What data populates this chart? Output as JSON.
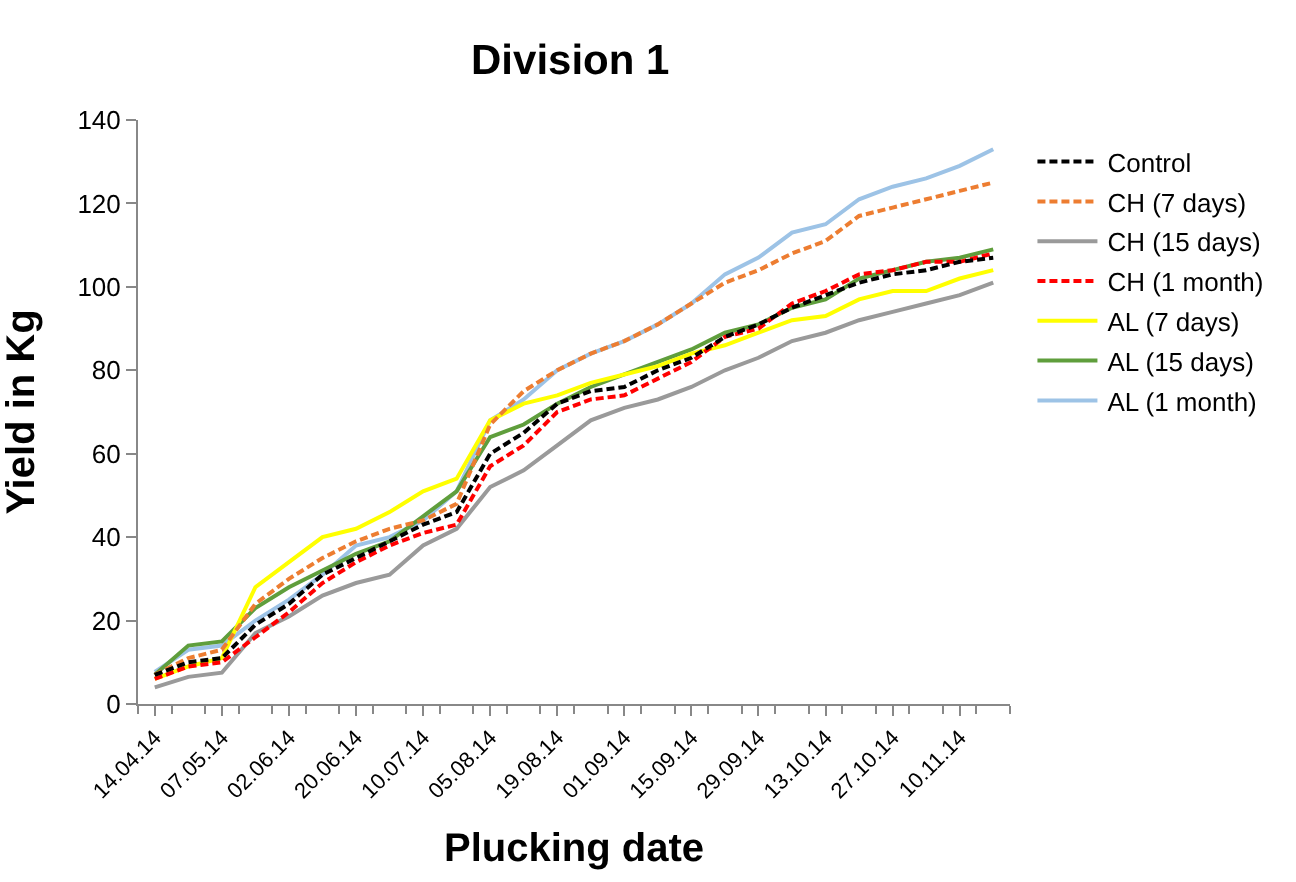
{
  "chart_data": {
    "type": "line",
    "title": "Division 1",
    "xlabel": "Plucking date",
    "ylabel": "Yield in Kg",
    "categories": [
      "14.04.14",
      null,
      "07.05.14",
      null,
      "02.06.14",
      null,
      "20.06.14",
      null,
      "10.07.14",
      null,
      "05.08.14",
      null,
      "19.08.14",
      null,
      "01.09.14",
      null,
      "15.09.14",
      null,
      "29.09.14",
      null,
      "13.10.14",
      null,
      "27.10.14",
      null,
      "10.11.14",
      null
    ],
    "ylim": [
      0,
      140
    ],
    "yticks": [
      0,
      20,
      40,
      60,
      80,
      100,
      120,
      140
    ],
    "legend": "right",
    "marker": "none",
    "series": [
      {
        "name": "Control",
        "color": "#000000",
        "line_style": "dashed",
        "values": [
          7,
          10,
          11,
          19,
          24,
          31,
          35,
          39,
          43,
          46,
          60,
          65,
          72,
          75,
          76,
          80,
          83,
          88,
          91,
          95,
          98,
          101,
          103,
          104,
          106,
          107
        ]
      },
      {
        "name": "CH (7 days)",
        "color": "#ed7d31",
        "line_style": "dashed",
        "values": [
          7,
          11,
          13,
          24,
          30,
          35,
          39,
          42,
          44,
          48,
          67,
          75,
          80,
          84,
          87,
          91,
          96,
          101,
          104,
          108,
          111,
          117,
          119,
          121,
          123,
          125
        ]
      },
      {
        "name": "CH (15 days)",
        "color": "#9a9a9a",
        "line_style": "solid",
        "values": [
          4,
          6.5,
          7.5,
          17,
          21,
          26,
          29,
          31,
          38,
          42,
          52,
          56,
          62,
          68,
          71,
          73,
          76,
          80,
          83,
          87,
          89,
          92,
          94,
          96,
          98,
          101
        ]
      },
      {
        "name": "CH (1 month)",
        "color": "#ff0000",
        "line_style": "dashed",
        "values": [
          6,
          9,
          10,
          16,
          22,
          29,
          34,
          38,
          41,
          43,
          57,
          62,
          70,
          73,
          74,
          78,
          82,
          88,
          90,
          96,
          99,
          103,
          104,
          106,
          106,
          108
        ]
      },
      {
        "name": "AL (7 days)",
        "color": "#ffff00",
        "line_style": "solid",
        "values": [
          6,
          9,
          11,
          28,
          34,
          40,
          42,
          46,
          51,
          54,
          68,
          72,
          74,
          77,
          79,
          81,
          84,
          86,
          89,
          92,
          93,
          97,
          99,
          99,
          102,
          104
        ]
      },
      {
        "name": "AL (15 days)",
        "color": "#5f9e3c",
        "line_style": "solid",
        "values": [
          7,
          14,
          15,
          23,
          28,
          32,
          36,
          39,
          45,
          51,
          64,
          67,
          72,
          76,
          79,
          82,
          85,
          89,
          91,
          95,
          97,
          102,
          104,
          106,
          107,
          109
        ]
      },
      {
        "name": "AL (1 month)",
        "color": "#9dc3e6",
        "line_style": "solid",
        "values": [
          7.7,
          13,
          14,
          20,
          25,
          31,
          38,
          40,
          44,
          51,
          68,
          73,
          80,
          84,
          87,
          91,
          96,
          103,
          107,
          113,
          115,
          121,
          124,
          126,
          129,
          133
        ]
      }
    ]
  }
}
